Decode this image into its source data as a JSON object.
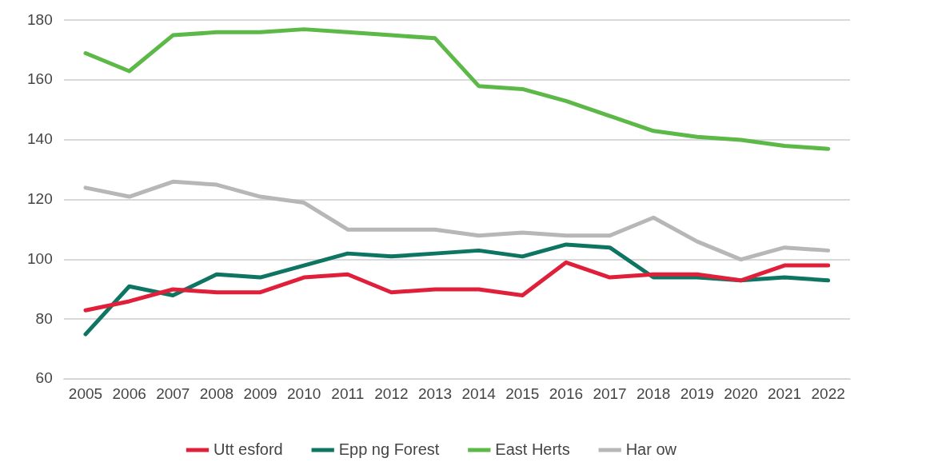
{
  "chart_data": {
    "type": "line",
    "categories": [
      "2005",
      "2006",
      "2007",
      "2008",
      "2009",
      "2010",
      "2011",
      "2012",
      "2013",
      "2014",
      "2015",
      "2016",
      "2017",
      "2018",
      "2019",
      "2020",
      "2021",
      "2022"
    ],
    "series": [
      {
        "name": "Utt esford",
        "color": "#e0203a",
        "values": [
          83,
          86,
          90,
          89,
          89,
          94,
          95,
          89,
          90,
          90,
          88,
          99,
          94,
          95,
          95,
          93,
          98,
          98
        ]
      },
      {
        "name": "Epp ng Forest",
        "color": "#0e7563",
        "values": [
          75,
          91,
          88,
          95,
          94,
          98,
          102,
          101,
          102,
          103,
          101,
          105,
          104,
          94,
          94,
          93,
          94,
          93
        ]
      },
      {
        "name": "East Herts",
        "color": "#5cb947",
        "values": [
          169,
          163,
          175,
          176,
          176,
          177,
          176,
          175,
          174,
          158,
          157,
          153,
          148,
          143,
          141,
          140,
          138,
          137
        ]
      },
      {
        "name": "Har ow",
        "color": "#b7b7b7",
        "values": [
          124,
          121,
          126,
          125,
          121,
          119,
          110,
          110,
          110,
          108,
          109,
          108,
          108,
          114,
          106,
          100,
          104,
          103
        ]
      }
    ],
    "ylim": [
      60,
      180
    ],
    "yticks": [
      60,
      80,
      100,
      120,
      140,
      160,
      180
    ],
    "grid": "y",
    "legend": "bottom",
    "marker": "none",
    "line_style": "solid"
  }
}
